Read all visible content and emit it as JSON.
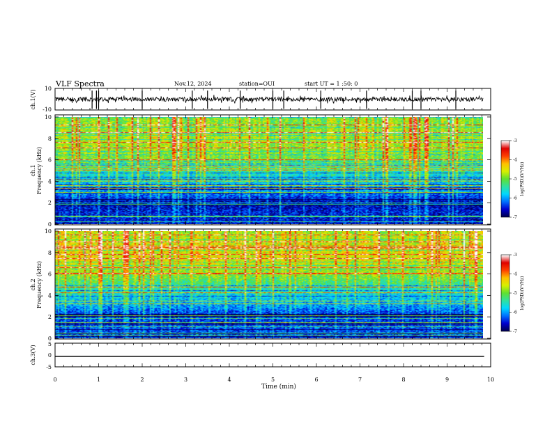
{
  "header": {
    "title": "VLF Spectra",
    "date": "Nov.12, 2024",
    "station": "station=OUI",
    "start": "start UT =  1 :50: 0"
  },
  "chart_data": [
    {
      "type": "line",
      "name": "ch1-waveform",
      "ylabel": "ch.1(V)",
      "ylim": [
        -10,
        10
      ],
      "yticks": [
        "10",
        "-10"
      ],
      "xlim": [
        0,
        10
      ],
      "baseline_v": 0,
      "noise_v": 2,
      "spikes_min": [
        0.85,
        0.95,
        1.0,
        2.0,
        3.15,
        3.5,
        4.25,
        5.0,
        5.25,
        6.1,
        7.15,
        8.2,
        8.4,
        9.2
      ]
    },
    {
      "type": "heatmap",
      "name": "ch1-spectrogram",
      "ylabel_line1": "ch.1",
      "ylabel_line2": "Frequency (kHz)",
      "xlim": [
        0,
        9.85
      ],
      "ylim": [
        0,
        10
      ],
      "yticks": [
        "0",
        "2",
        "4",
        "6",
        "8",
        "10"
      ],
      "colorbar": {
        "label": "log(PSD)(V²/Hz)",
        "range": [
          -7,
          -3
        ],
        "ticks": [
          "-3",
          "-4",
          "-5",
          "-6",
          "-7"
        ]
      },
      "mean_log_psd_profile": [
        {
          "f_khz": 0.0,
          "v": -6.6
        },
        {
          "f_khz": 1.0,
          "v": -6.5
        },
        {
          "f_khz": 2.0,
          "v": -6.7
        },
        {
          "f_khz": 3.0,
          "v": -6.0
        },
        {
          "f_khz": 4.0,
          "v": -5.8
        },
        {
          "f_khz": 5.0,
          "v": -5.4
        },
        {
          "f_khz": 6.0,
          "v": -5.0
        },
        {
          "f_khz": 7.0,
          "v": -4.8
        },
        {
          "f_khz": 8.0,
          "v": -4.7
        },
        {
          "f_khz": 9.0,
          "v": -4.8
        },
        {
          "f_khz": 10.0,
          "v": -4.9
        }
      ]
    },
    {
      "type": "heatmap",
      "name": "ch2-spectrogram",
      "ylabel_line1": "ch.2",
      "ylabel_line2": "Frequency (kHz)",
      "xlim": [
        0,
        9.85
      ],
      "ylim": [
        0,
        10
      ],
      "yticks": [
        "0",
        "2",
        "4",
        "6",
        "8",
        "10"
      ],
      "colorbar": {
        "label": "log(PSD)(V²/Hz)",
        "range": [
          -7,
          -3
        ],
        "ticks": [
          "-3",
          "-4",
          "-5",
          "-6",
          "-7"
        ]
      },
      "mean_log_psd_profile": [
        {
          "f_khz": 0.0,
          "v": -6.4
        },
        {
          "f_khz": 1.0,
          "v": -6.3
        },
        {
          "f_khz": 2.0,
          "v": -6.5
        },
        {
          "f_khz": 3.0,
          "v": -6.0
        },
        {
          "f_khz": 4.0,
          "v": -5.7
        },
        {
          "f_khz": 5.0,
          "v": -5.3
        },
        {
          "f_khz": 6.0,
          "v": -4.9
        },
        {
          "f_khz": 7.0,
          "v": -4.6
        },
        {
          "f_khz": 8.0,
          "v": -4.5
        },
        {
          "f_khz": 9.0,
          "v": -4.6
        },
        {
          "f_khz": 10.0,
          "v": -4.7
        }
      ]
    },
    {
      "type": "line",
      "name": "ch3-waveform",
      "ylabel": "ch.3(V)",
      "ylim": [
        -5,
        5
      ],
      "yticks": [
        "5",
        "0",
        "-5"
      ],
      "xlim": [
        0,
        10
      ],
      "x": [
        0,
        9.85
      ],
      "y": [
        -0.6,
        -0.6
      ]
    }
  ],
  "xaxis": {
    "label": "Time (min)",
    "ticks": [
      "0",
      "1",
      "2",
      "3",
      "4",
      "5",
      "6",
      "7",
      "8",
      "9",
      "10"
    ]
  },
  "colors": {
    "colormap": [
      "#000050",
      "#0000d0",
      "#0070ff",
      "#00d8ff",
      "#30e0a0",
      "#60e030",
      "#d8f000",
      "#ffc000",
      "#ff4000",
      "#e00000",
      "#ffffff"
    ]
  }
}
